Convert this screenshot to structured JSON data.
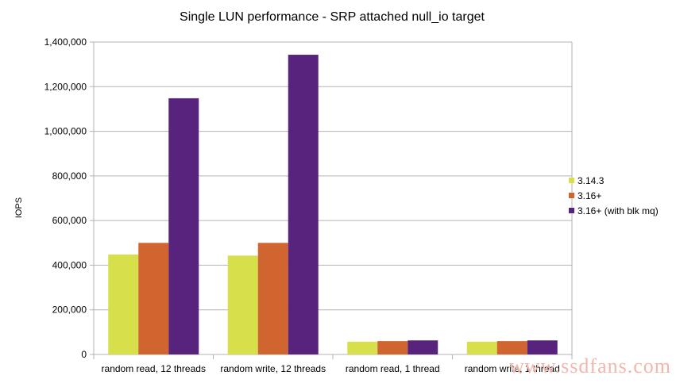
{
  "chart_data": {
    "type": "bar",
    "title": "Single LUN performance - SRP attached null_io target",
    "xlabel": "",
    "ylabel": "IOPS",
    "categories": [
      "random read, 12 threads",
      "random write, 12 threads",
      "random read, 1 thread",
      "random write, 1 thread"
    ],
    "series": [
      {
        "name": "3.14.3",
        "color": "#d7e04a",
        "values": [
          448000,
          443000,
          57000,
          57000
        ]
      },
      {
        "name": "3.16+",
        "color": "#d06530",
        "values": [
          500000,
          500000,
          60000,
          60000
        ]
      },
      {
        "name": "3.16+ (with blk mq)",
        "color": "#57237d",
        "values": [
          1148000,
          1343000,
          63000,
          63000
        ]
      }
    ],
    "ylim": [
      0,
      1400000
    ],
    "yticks": [
      "0",
      "200,000",
      "400,000",
      "600,000",
      "800,000",
      "1,000,000",
      "1,200,000",
      "1,400,000"
    ],
    "grid": true,
    "legend": "right"
  },
  "watermark": "www.ssdfans.com"
}
